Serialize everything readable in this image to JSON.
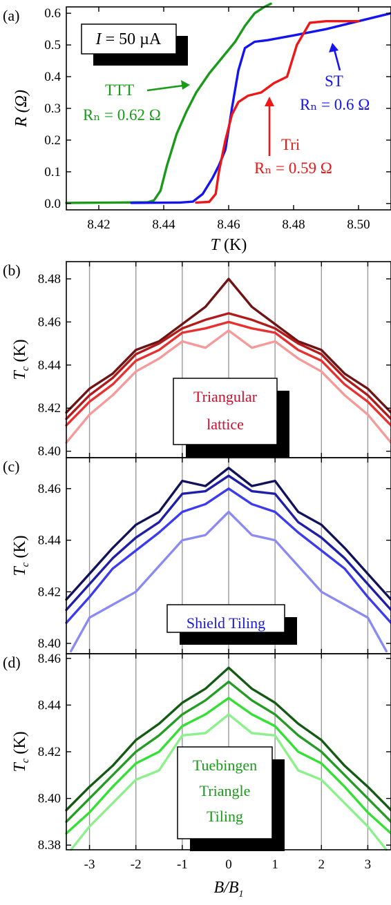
{
  "panel_a": {
    "letter": "(a)",
    "current_label": "I = 50 µA",
    "annotations": [
      {
        "key": "ttt",
        "name": "TTT",
        "rn": "Rₙ = 0.62 Ω",
        "color": "#199a19"
      },
      {
        "key": "st",
        "name": "ST",
        "rn": "Rₙ = 0.6 Ω",
        "color": "#1414ee"
      },
      {
        "key": "tri",
        "name": "Tri",
        "rn": "Rₙ = 0.59 Ω",
        "color": "#ee1616"
      }
    ]
  },
  "panels_tc": [
    {
      "letter": "(b)",
      "label_lines": [
        "Triangular",
        "lattice"
      ],
      "label_color": "#c8102e"
    },
    {
      "letter": "(c)",
      "label_lines": [
        "Shield Tiling"
      ],
      "label_color": "#1b1bcc"
    },
    {
      "letter": "(d)",
      "label_lines": [
        "Tuebingen",
        "Triangle",
        "Tiling"
      ],
      "label_color": "#1a9a1a"
    }
  ],
  "chart_data": [
    {
      "panel": "a",
      "type": "line",
      "xlabel": "T (K)",
      "ylabel": "R (Ω)",
      "xlim": [
        8.41,
        8.51
      ],
      "ylim": [
        -0.02,
        0.62
      ],
      "xticks": [
        "8.42",
        "8.44",
        "8.46",
        "8.48",
        "8.50"
      ],
      "yticks": [
        "0.0",
        "0.1",
        "0.2",
        "0.3",
        "0.4",
        "0.5",
        "0.6"
      ],
      "series": [
        {
          "name": "TTT",
          "color": "#199a19",
          "x": [
            8.41,
            8.425,
            8.435,
            8.437,
            8.439,
            8.441,
            8.444,
            8.447,
            8.45,
            8.454,
            8.458,
            8.462,
            8.465,
            8.468,
            8.471,
            8.473
          ],
          "y": [
            0.002,
            0.003,
            0.004,
            0.01,
            0.04,
            0.12,
            0.22,
            0.29,
            0.35,
            0.41,
            0.46,
            0.51,
            0.56,
            0.6,
            0.62,
            0.63
          ]
        },
        {
          "name": "ST",
          "color": "#1414ee",
          "x": [
            8.43,
            8.445,
            8.449,
            8.452,
            8.455,
            8.457,
            8.459,
            8.461,
            8.463,
            8.465,
            8.468,
            8.472,
            8.48,
            8.49,
            8.5,
            8.51
          ],
          "y": [
            0.002,
            0.003,
            0.006,
            0.03,
            0.08,
            0.12,
            0.17,
            0.3,
            0.42,
            0.49,
            0.51,
            0.515,
            0.53,
            0.55,
            0.575,
            0.6
          ]
        },
        {
          "name": "Tri",
          "color": "#ee1616",
          "x": [
            8.45,
            8.454,
            8.456,
            8.457,
            8.459,
            8.461,
            8.463,
            8.466,
            8.47,
            8.474,
            8.478,
            8.481,
            8.485,
            8.49,
            8.495,
            8.5
          ],
          "y": [
            0.003,
            0.005,
            0.03,
            0.1,
            0.2,
            0.28,
            0.32,
            0.34,
            0.35,
            0.38,
            0.4,
            0.5,
            0.57,
            0.575,
            0.575,
            0.575
          ]
        }
      ]
    },
    {
      "panel": "b",
      "type": "line",
      "xlabel": "",
      "ylabel": "Tc (K)",
      "xlim": [
        -3.5,
        3.5
      ],
      "ylim": [
        8.397,
        8.488
      ],
      "yticks": [
        "8.40",
        "8.42",
        "8.44",
        "8.46",
        "8.48"
      ],
      "xticks": [
        "-3",
        "-2",
        "-1",
        "0",
        "1",
        "2",
        "3"
      ],
      "vlines": [
        -3,
        -2,
        -1,
        0,
        1,
        2,
        3
      ],
      "series": [
        {
          "color": "#6e1414",
          "x": [
            -3.5,
            -3,
            -2.5,
            -2,
            -1.5,
            -1,
            -0.5,
            0,
            0.5,
            1,
            1.5,
            2,
            2.5,
            3,
            3.5
          ],
          "y": [
            8.418,
            8.429,
            8.436,
            8.447,
            8.451,
            8.459,
            8.467,
            8.48,
            8.467,
            8.459,
            8.451,
            8.447,
            8.436,
            8.429,
            8.418
          ]
        },
        {
          "color": "#b01c1c",
          "x": [
            -3.5,
            -3,
            -2.5,
            -2,
            -1.5,
            -1,
            -0.5,
            0,
            0.5,
            1,
            1.5,
            2,
            2.5,
            3,
            3.5
          ],
          "y": [
            8.415,
            8.426,
            8.434,
            8.445,
            8.45,
            8.457,
            8.461,
            8.464,
            8.461,
            8.457,
            8.45,
            8.445,
            8.434,
            8.426,
            8.415
          ]
        },
        {
          "color": "#e83030",
          "x": [
            -3.5,
            -3,
            -2.5,
            -2,
            -1.5,
            -1,
            -0.5,
            0,
            0.5,
            1,
            1.5,
            2,
            2.5,
            3,
            3.5
          ],
          "y": [
            8.412,
            8.423,
            8.431,
            8.442,
            8.447,
            8.455,
            8.457,
            8.46,
            8.457,
            8.455,
            8.447,
            8.442,
            8.431,
            8.423,
            8.412
          ]
        },
        {
          "color": "#f59a9a",
          "x": [
            -3.5,
            -3,
            -2.5,
            -2,
            -1.5,
            -1,
            -0.5,
            0,
            0.5,
            1,
            1.5,
            2,
            2.5,
            3,
            3.5
          ],
          "y": [
            8.404,
            8.417,
            8.426,
            8.437,
            8.443,
            8.451,
            8.448,
            8.456,
            8.448,
            8.451,
            8.443,
            8.437,
            8.426,
            8.417,
            8.404
          ]
        }
      ]
    },
    {
      "panel": "c",
      "type": "line",
      "xlabel": "",
      "ylabel": "Tc (K)",
      "xlim": [
        -3.5,
        3.5
      ],
      "ylim": [
        8.396,
        8.472
      ],
      "yticks": [
        "8.40",
        "8.42",
        "8.44",
        "8.46"
      ],
      "xticks": [
        "-3",
        "-2",
        "-1",
        "0",
        "1",
        "2",
        "3"
      ],
      "vlines": [
        -3,
        -2,
        -1,
        0,
        1,
        2,
        3
      ],
      "series": [
        {
          "color": "#12125a",
          "x": [
            -3.5,
            -3,
            -2.5,
            -2,
            -1.5,
            -1,
            -0.5,
            0,
            0.5,
            1,
            1.5,
            2,
            2.5,
            3,
            3.5
          ],
          "y": [
            8.417,
            8.427,
            8.437,
            8.446,
            8.451,
            8.463,
            8.461,
            8.468,
            8.461,
            8.463,
            8.451,
            8.446,
            8.437,
            8.427,
            8.417
          ]
        },
        {
          "color": "#1e1ea6",
          "x": [
            -3.5,
            -3,
            -2.5,
            -2,
            -1.5,
            -1,
            -0.5,
            0,
            0.5,
            1,
            1.5,
            2,
            2.5,
            3,
            3.5
          ],
          "y": [
            8.413,
            8.423,
            8.433,
            8.441,
            8.447,
            8.458,
            8.459,
            8.465,
            8.459,
            8.458,
            8.447,
            8.441,
            8.433,
            8.423,
            8.413
          ]
        },
        {
          "color": "#3c3cee",
          "x": [
            -3.5,
            -3,
            -2.5,
            -2,
            -1.5,
            -1,
            -0.5,
            0,
            0.5,
            1,
            1.5,
            2,
            2.5,
            3,
            3.5
          ],
          "y": [
            8.408,
            8.418,
            8.429,
            8.436,
            8.443,
            8.451,
            8.454,
            8.46,
            8.454,
            8.451,
            8.443,
            8.436,
            8.429,
            8.418,
            8.408
          ]
        },
        {
          "color": "#8a8af2",
          "x": [
            -3.4,
            -3,
            -2.5,
            -2,
            -1.5,
            -1,
            -0.5,
            0,
            0.5,
            1,
            1.5,
            2,
            2.5,
            3,
            3.4
          ],
          "y": [
            8.397,
            8.41,
            8.415,
            8.42,
            8.43,
            8.44,
            8.442,
            8.451,
            8.442,
            8.44,
            8.43,
            8.42,
            8.415,
            8.41,
            8.397
          ]
        }
      ]
    },
    {
      "panel": "d",
      "type": "line",
      "xlabel": "B/B₁",
      "ylabel": "Tc (K)",
      "xlim": [
        -3.5,
        3.5
      ],
      "ylim": [
        8.378,
        8.462
      ],
      "yticks": [
        "8.38",
        "8.40",
        "8.42",
        "8.44",
        "8.46"
      ],
      "xticks": [
        "-3",
        "-2",
        "-1",
        "0",
        "1",
        "2",
        "3"
      ],
      "vlines": [
        -3,
        -2,
        -1,
        0,
        1,
        2,
        3
      ],
      "series": [
        {
          "color": "#145a14",
          "x": [
            -3.5,
            -3,
            -2.5,
            -2,
            -1.5,
            -1,
            -0.5,
            0,
            0.5,
            1,
            1.5,
            2,
            2.5,
            3,
            3.5
          ],
          "y": [
            8.395,
            8.405,
            8.414,
            8.425,
            8.432,
            8.441,
            8.447,
            8.456,
            8.447,
            8.441,
            8.432,
            8.425,
            8.414,
            8.405,
            8.395
          ]
        },
        {
          "color": "#259c25",
          "x": [
            -3.5,
            -3,
            -2.5,
            -2,
            -1.5,
            -1,
            -0.5,
            0,
            0.5,
            1,
            1.5,
            2,
            2.5,
            3,
            3.5
          ],
          "y": [
            8.39,
            8.4,
            8.41,
            8.42,
            8.427,
            8.436,
            8.442,
            8.45,
            8.442,
            8.436,
            8.427,
            8.42,
            8.41,
            8.4,
            8.39
          ]
        },
        {
          "color": "#33e033",
          "x": [
            -3.5,
            -3,
            -2.5,
            -2,
            -1.5,
            -1,
            -0.5,
            0,
            0.5,
            1,
            1.5,
            2,
            2.5,
            3,
            3.5
          ],
          "y": [
            8.385,
            8.394,
            8.405,
            8.415,
            8.42,
            8.431,
            8.436,
            8.443,
            8.436,
            8.431,
            8.42,
            8.415,
            8.405,
            8.394,
            8.385
          ]
        },
        {
          "color": "#8cf08c",
          "x": [
            -3.4,
            -3,
            -2.5,
            -2,
            -1.5,
            -1,
            -0.5,
            0,
            0.5,
            1,
            1.5,
            2,
            2.5,
            3,
            3.4
          ],
          "y": [
            8.378,
            8.388,
            8.398,
            8.408,
            8.412,
            8.427,
            8.428,
            8.436,
            8.428,
            8.427,
            8.412,
            8.408,
            8.398,
            8.388,
            8.378
          ]
        }
      ]
    }
  ],
  "axis_titles": {
    "a_x": "T (K)",
    "a_y": "R (Ω)",
    "tc_y": "Tc (K)",
    "d_x": "B/B₁"
  }
}
